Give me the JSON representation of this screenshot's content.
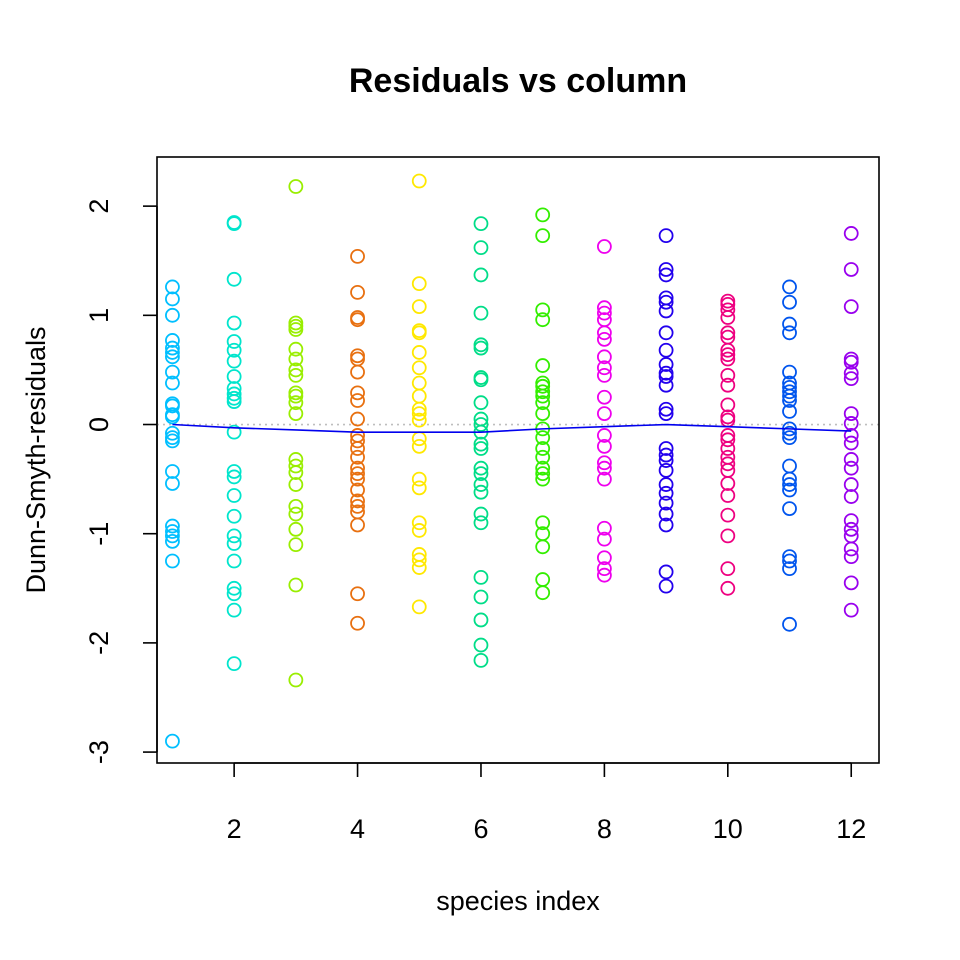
{
  "chart_data": {
    "type": "scatter",
    "title": "Residuals vs column",
    "xlabel": "species index",
    "ylabel": "Dunn-Smyth-residuals",
    "xlim": [
      0.75,
      12.45
    ],
    "ylim": [
      -3.1,
      2.45
    ],
    "xticks": [
      2,
      4,
      6,
      8,
      10,
      12
    ],
    "xtick_labels": [
      "2",
      "4",
      "6",
      "8",
      "10",
      "12"
    ],
    "yticks": [
      -3,
      -2,
      -1,
      0,
      1,
      2
    ],
    "ytick_labels": [
      "-3",
      "-2",
      "-1",
      "0",
      "1",
      "2"
    ],
    "grid": false,
    "reference_line": {
      "y": 0,
      "style": "dotted",
      "color": "#bebebe"
    },
    "species_colors": [
      "#00BFFF",
      "#00E5CC",
      "#99EE00",
      "#E87010",
      "#FFE800",
      "#00DD88",
      "#33EE00",
      "#EE00EE",
      "#2200EE",
      "#EE0080",
      "#0055EE",
      "#9900EE"
    ],
    "series": [
      {
        "x": 1,
        "y": [
          1.26,
          1.15,
          1.0,
          0.77,
          0.7,
          0.66,
          0.62,
          0.48,
          0.38,
          0.19,
          0.17,
          0.09,
          0.07,
          -0.08,
          -0.12,
          -0.15,
          -0.43,
          -0.54,
          -0.93,
          -0.98,
          -1.02,
          -1.07,
          -1.25,
          -2.9
        ]
      },
      {
        "x": 2,
        "y": [
          1.85,
          1.84,
          1.33,
          0.93,
          0.76,
          0.68,
          0.58,
          0.44,
          0.33,
          0.28,
          0.24,
          0.21,
          -0.07,
          -0.43,
          -0.48,
          -0.65,
          -0.84,
          -1.02,
          -1.09,
          -1.25,
          -1.5,
          -1.55,
          -1.7,
          -2.19
        ]
      },
      {
        "x": 3,
        "y": [
          2.18,
          0.93,
          0.9,
          0.87,
          0.69,
          0.6,
          0.5,
          0.45,
          0.29,
          0.26,
          0.2,
          0.1,
          -0.32,
          -0.38,
          -0.44,
          -0.55,
          -0.75,
          -0.82,
          -0.96,
          -1.1,
          -1.47,
          -2.34
        ]
      },
      {
        "x": 4,
        "y": [
          1.54,
          1.21,
          0.98,
          0.96,
          0.63,
          0.6,
          0.48,
          0.29,
          0.22,
          0.05,
          -0.1,
          -0.15,
          -0.22,
          -0.3,
          -0.4,
          -0.45,
          -0.5,
          -0.6,
          -0.7,
          -0.75,
          -0.8,
          -0.92,
          -1.55,
          -1.82
        ]
      },
      {
        "x": 5,
        "y": [
          2.23,
          1.29,
          1.08,
          0.86,
          0.84,
          0.66,
          0.52,
          0.38,
          0.26,
          0.14,
          0.1,
          0.04,
          -0.13,
          -0.2,
          -0.5,
          -0.58,
          -0.9,
          -0.97,
          -1.19,
          -1.24,
          -1.31,
          -1.67
        ]
      },
      {
        "x": 6,
        "y": [
          1.84,
          1.62,
          1.37,
          1.02,
          0.73,
          0.7,
          0.43,
          0.41,
          0.2,
          0.05,
          0.0,
          -0.07,
          -0.18,
          -0.22,
          -0.4,
          -0.45,
          -0.55,
          -0.62,
          -0.82,
          -0.9,
          -1.4,
          -1.58,
          -1.79,
          -2.02,
          -2.16
        ]
      },
      {
        "x": 7,
        "y": [
          1.92,
          1.73,
          1.05,
          0.96,
          0.54,
          0.38,
          0.35,
          0.3,
          0.26,
          0.2,
          0.1,
          -0.04,
          -0.12,
          -0.22,
          -0.3,
          -0.4,
          -0.45,
          -0.5,
          -0.9,
          -1.0,
          -1.12,
          -1.42,
          -1.54
        ]
      },
      {
        "x": 8,
        "y": [
          1.63,
          1.07,
          1.02,
          0.96,
          0.84,
          0.78,
          0.62,
          0.52,
          0.45,
          0.25,
          0.1,
          -0.1,
          -0.2,
          -0.35,
          -0.4,
          -0.5,
          -0.95,
          -1.05,
          -1.22,
          -1.32,
          -1.38
        ]
      },
      {
        "x": 9,
        "y": [
          1.73,
          1.42,
          1.37,
          1.16,
          1.12,
          1.04,
          0.84,
          0.68,
          0.55,
          0.47,
          0.44,
          0.36,
          0.14,
          0.1,
          -0.22,
          -0.28,
          -0.33,
          -0.42,
          -0.55,
          -0.63,
          -0.72,
          -0.82,
          -0.92,
          -1.35,
          -1.48
        ]
      },
      {
        "x": 10,
        "y": [
          1.13,
          1.1,
          1.05,
          0.98,
          0.84,
          0.8,
          0.68,
          0.64,
          0.6,
          0.45,
          0.36,
          0.18,
          0.07,
          0.04,
          -0.1,
          -0.14,
          -0.22,
          -0.3,
          -0.36,
          -0.42,
          -0.54,
          -0.65,
          -0.83,
          -1.02,
          -1.32,
          -1.5
        ]
      },
      {
        "x": 11,
        "y": [
          1.26,
          1.12,
          0.92,
          0.84,
          0.48,
          0.38,
          0.34,
          0.3,
          0.26,
          0.22,
          0.12,
          -0.04,
          -0.08,
          -0.12,
          -0.38,
          -0.5,
          -0.55,
          -0.6,
          -0.77,
          -1.21,
          -1.25,
          -1.32,
          -1.83
        ]
      },
      {
        "x": 12,
        "y": [
          1.75,
          1.42,
          1.08,
          0.6,
          0.57,
          0.47,
          0.42,
          0.1,
          0.01,
          -0.1,
          -0.17,
          -0.32,
          -0.4,
          -0.55,
          -0.66,
          -0.88,
          -0.96,
          -1.02,
          -1.14,
          -1.21,
          -1.45,
          -1.7
        ]
      }
    ],
    "trend_line": {
      "color": "#0000EE",
      "x": [
        1,
        2,
        3,
        4,
        5,
        6,
        7,
        8,
        9,
        10,
        11,
        12
      ],
      "y": [
        0.0,
        -0.03,
        -0.05,
        -0.07,
        -0.07,
        -0.07,
        -0.04,
        -0.02,
        0.0,
        -0.02,
        -0.04,
        -0.06
      ]
    }
  }
}
